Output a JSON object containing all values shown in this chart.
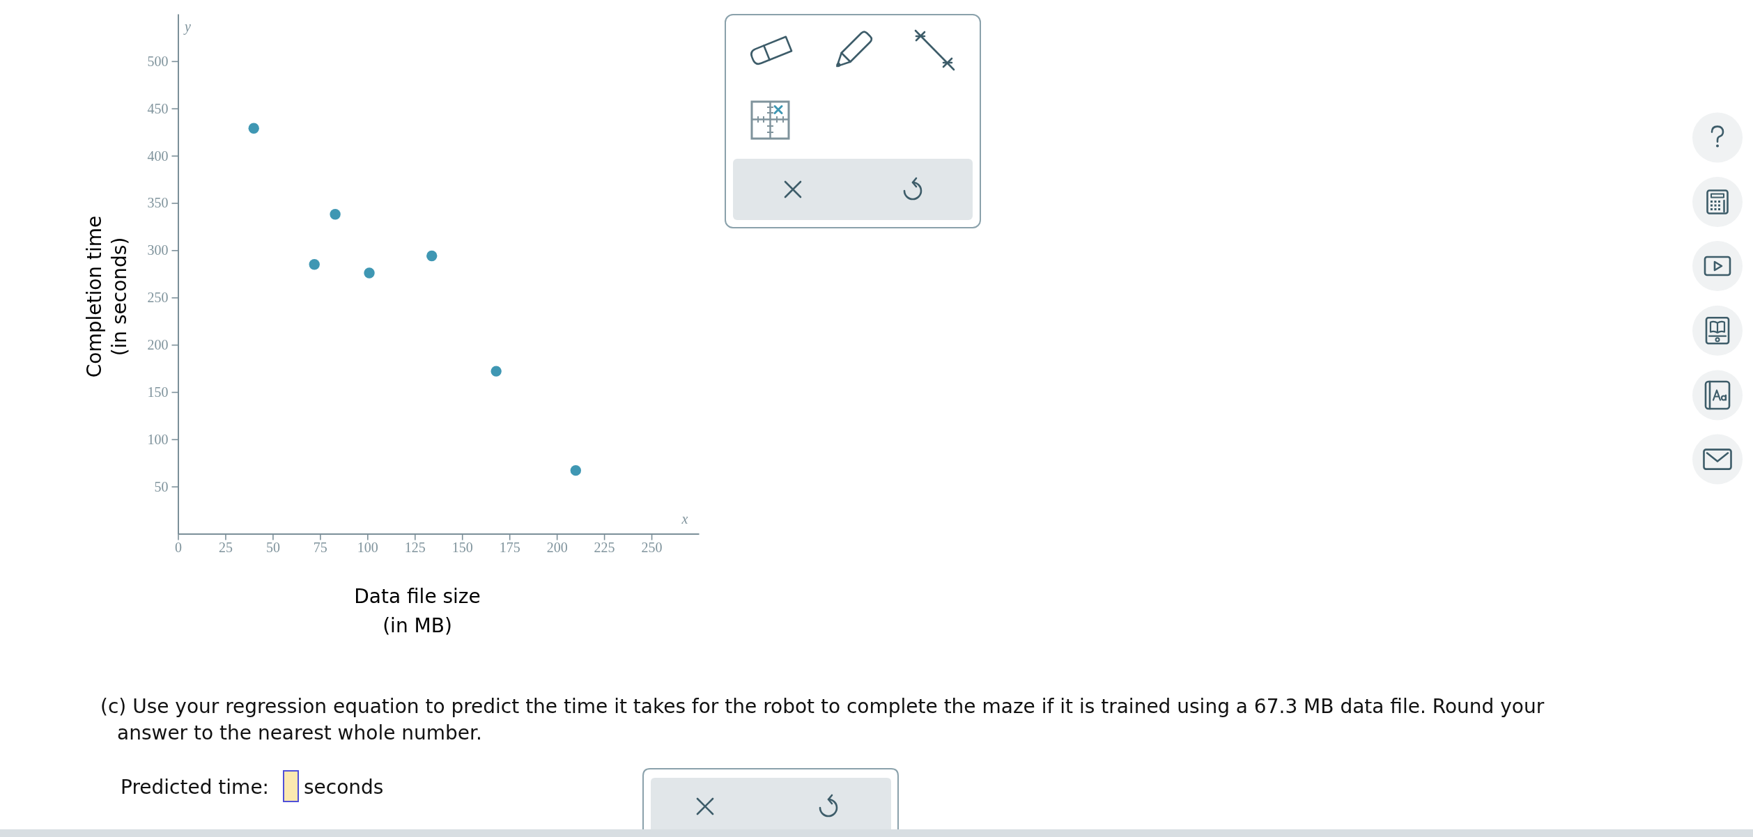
{
  "chart_data": {
    "type": "scatter",
    "xlabel": "Data file size\n(in MB)",
    "ylabel": "Completion time\n(in seconds)",
    "x": [
      40,
      72,
      83,
      101,
      134,
      168,
      210
    ],
    "values": [
      429,
      285,
      338,
      276,
      294,
      172,
      67
    ],
    "color": "#3f97b3",
    "marker": "circle",
    "xlim": [
      0,
      275
    ],
    "ylim": [
      0,
      550
    ],
    "xticks": [
      {
        "value": 0,
        "label": "0"
      },
      25,
      50,
      75,
      100,
      125,
      150,
      175,
      200,
      225,
      250
    ],
    "yticks": [
      50,
      100,
      150,
      200,
      250,
      300,
      350,
      400,
      450,
      500
    ],
    "annotations": [
      "y",
      "x",
      "(c) Use your regression equation to predict the time it takes for the robot to complete the maze if it is trained using a 67.3 MB data file. Round your\nanswer to the nearest whole number.",
      "Predicted time:",
      "seconds"
    ]
  }
}
